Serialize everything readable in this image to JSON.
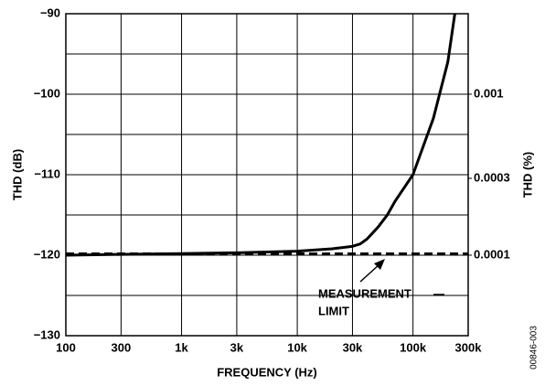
{
  "chart_data": {
    "type": "line",
    "xlabel": "FREQUENCY (Hz)",
    "ylabel": "THD (dB)",
    "y2label": "THD (%)",
    "xscale": "log",
    "xlim": [
      100,
      300000
    ],
    "xticks": [
      100,
      300,
      {
        "value": 1000,
        "label": "1k"
      },
      {
        "value": 3000,
        "label": "3k"
      },
      {
        "value": 10000,
        "label": "10k"
      },
      {
        "value": 30000,
        "label": "30k"
      },
      {
        "value": 100000,
        "label": "100k"
      },
      {
        "value": 300000,
        "label": "300k"
      }
    ],
    "ylim": [
      -130,
      -90
    ],
    "yticks": [
      {
        "value": -130,
        "label": "−130"
      },
      {
        "value": -120,
        "label": "−120"
      },
      {
        "value": -110,
        "label": "−110"
      },
      {
        "value": -100,
        "label": "−100"
      },
      {
        "value": -90,
        "label": "−90"
      }
    ],
    "ygrid": [
      -125,
      -115,
      -105,
      -95
    ],
    "y2scale": "log",
    "y2lim": [
      3.16e-05,
      0.00316
    ],
    "y2ticks": [
      0.0001,
      0.0003,
      0.001
    ],
    "grid": true,
    "x": [
      100,
      300,
      1000,
      3000,
      10000,
      20000,
      30000,
      35000,
      40000,
      50000,
      60000,
      70000,
      100000,
      150000,
      200000,
      230000
    ],
    "values": [
      -120,
      -119.9,
      -119.8,
      -119.7,
      -119.5,
      -119.2,
      -118.9,
      -118.6,
      -118,
      -116.5,
      -115,
      -113.3,
      -110,
      -103,
      -96,
      -90
    ],
    "color": "#000000",
    "limit": -119.8,
    "annotation": [
      "MEASUREMENT",
      "LIMIT"
    ],
    "figure_id": "00846-003"
  }
}
